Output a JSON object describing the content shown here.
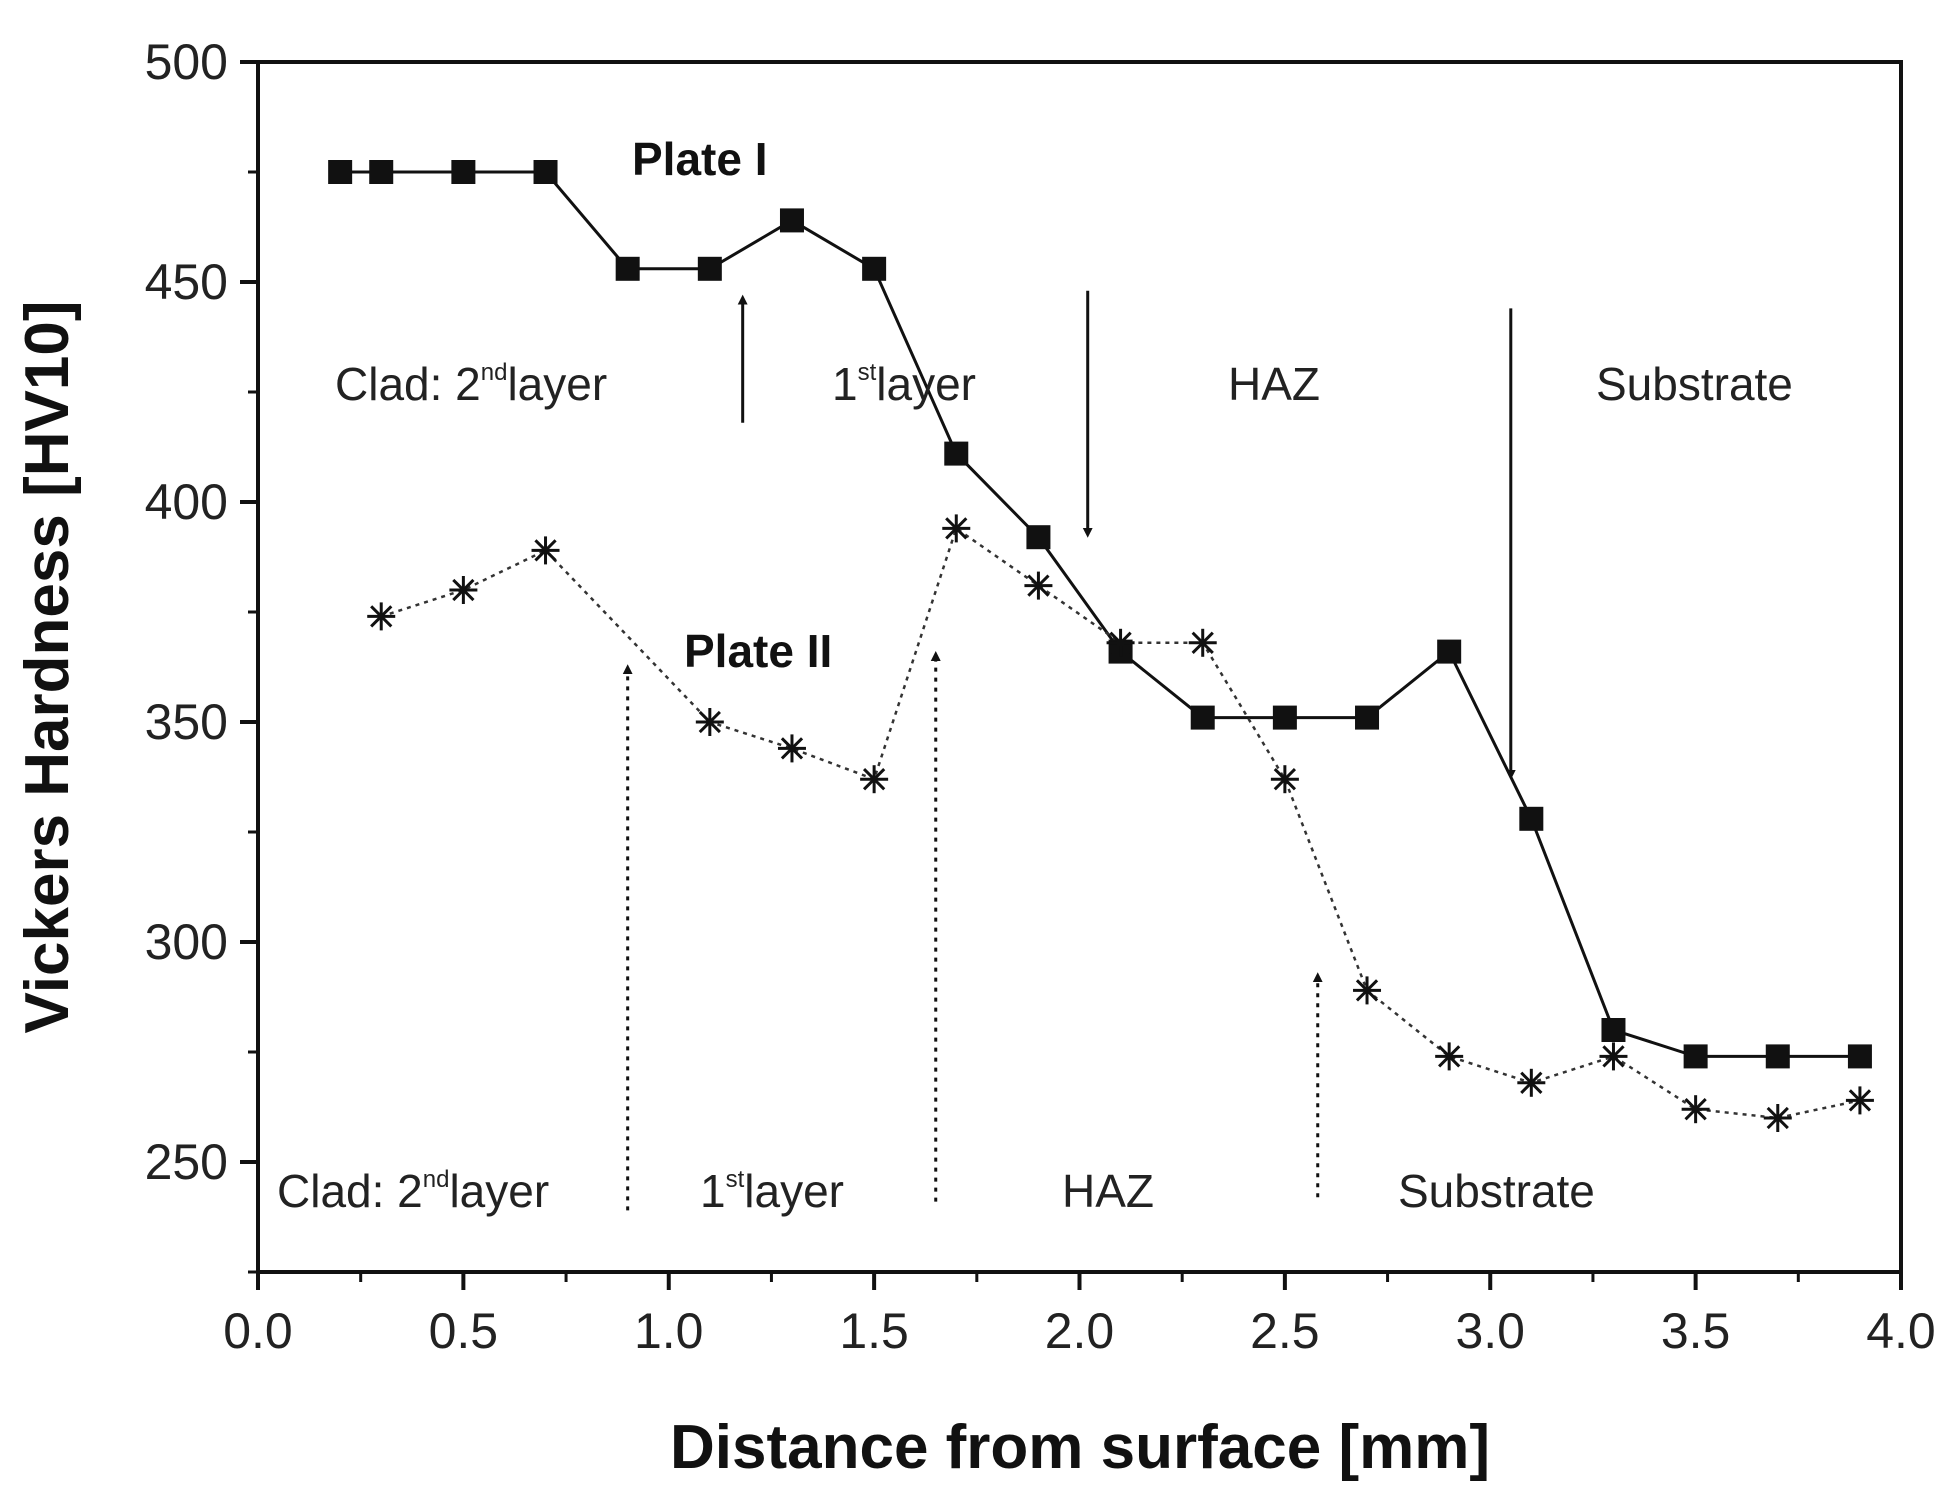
{
  "chart_data": {
    "type": "line",
    "xlabel": "Distance from surface [mm]",
    "ylabel": "Vickers Hardness [HV10]",
    "xlim": [
      0.0,
      4.0
    ],
    "ylim": [
      225,
      500
    ],
    "xticks": [
      "0.0",
      "0.5",
      "1.0",
      "1.5",
      "2.0",
      "2.5",
      "3.0",
      "3.5",
      "4.0"
    ],
    "xtick_values": [
      0.0,
      0.5,
      1.0,
      1.5,
      2.0,
      2.5,
      3.0,
      3.5,
      4.0
    ],
    "yticks": [
      "250",
      "300",
      "350",
      "400",
      "450",
      "500"
    ],
    "ytick_values": [
      250,
      300,
      350,
      400,
      450,
      500
    ],
    "series": [
      {
        "name": "Plate I",
        "marker": "square",
        "line": "solid",
        "x": [
          0.2,
          0.3,
          0.5,
          0.7,
          0.9,
          1.1,
          1.3,
          1.5,
          1.7,
          1.9,
          2.1,
          2.3,
          2.5,
          2.7,
          2.9,
          3.1,
          3.3,
          3.5,
          3.7,
          3.9
        ],
        "y": [
          475,
          475,
          475,
          475,
          453,
          453,
          464,
          453,
          411,
          392,
          366,
          351,
          351,
          351,
          366,
          328,
          280,
          274,
          274,
          274
        ]
      },
      {
        "name": "Plate II",
        "marker": "asterisk",
        "line": "dotted",
        "x": [
          0.3,
          0.5,
          0.7,
          1.1,
          1.3,
          1.5,
          1.7,
          1.9,
          2.1,
          2.3,
          2.5,
          2.7,
          2.9,
          3.1,
          3.3,
          3.5,
          3.7,
          3.9
        ],
        "y": [
          374,
          380,
          389,
          350,
          344,
          337,
          394,
          381,
          368,
          368,
          337,
          289,
          274,
          268,
          274,
          262,
          260,
          264
        ]
      }
    ],
    "annotations": {
      "plate1_label": "Plate I",
      "plate2_label": "Plate II",
      "plate1_regions": [
        {
          "base": "Clad: 2",
          "sup": "nd",
          "rest": "layer"
        },
        {
          "base": "1",
          "sup": "st",
          "rest": "layer"
        },
        {
          "base": "HAZ",
          "sup": "",
          "rest": ""
        },
        {
          "base": "Substrate",
          "sup": "",
          "rest": ""
        }
      ],
      "plate2_regions": [
        {
          "base": "Clad: 2",
          "sup": "nd",
          "rest": "layer"
        },
        {
          "base": "1",
          "sup": "st",
          "rest": "layer"
        },
        {
          "base": "HAZ",
          "sup": "",
          "rest": ""
        },
        {
          "base": "Substrate",
          "sup": "",
          "rest": ""
        }
      ],
      "plate1_boundaries": [
        {
          "x": 1.18,
          "from": 418,
          "to": 446,
          "dir": "up"
        },
        {
          "x": 2.02,
          "from": 448,
          "to": 393,
          "dir": "down"
        },
        {
          "x": 3.05,
          "from": 444,
          "to": 338,
          "dir": "down"
        }
      ],
      "plate2_boundaries": [
        {
          "x": 0.9,
          "from": 239,
          "to": 362,
          "dir": "up"
        },
        {
          "x": 1.65,
          "from": 241,
          "to": 365,
          "dir": "up"
        },
        {
          "x": 2.58,
          "from": 242,
          "to": 292,
          "dir": "up"
        }
      ]
    }
  }
}
